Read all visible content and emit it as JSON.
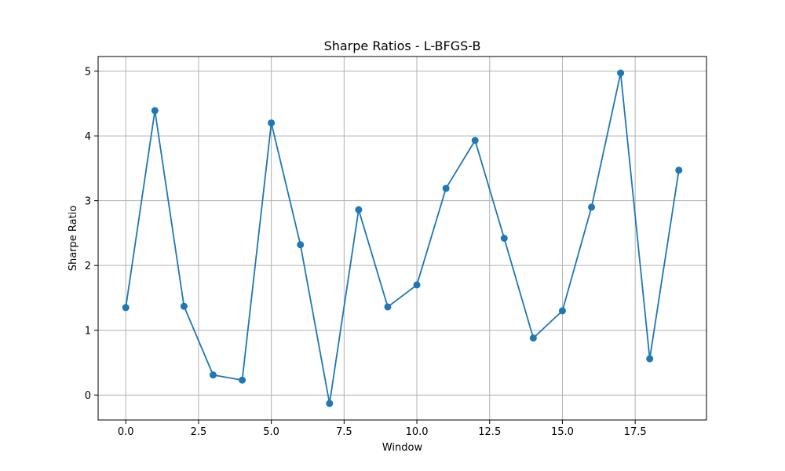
{
  "chart_data": {
    "type": "line",
    "title": "Sharpe Ratios - L-BFGS-B",
    "xlabel": "Window",
    "ylabel": "Sharpe Ratio",
    "x": [
      0,
      1,
      2,
      3,
      4,
      5,
      6,
      7,
      8,
      9,
      10,
      11,
      12,
      13,
      14,
      15,
      16,
      17,
      18,
      19
    ],
    "series": [
      {
        "values": [
          1.35,
          4.39,
          1.37,
          0.31,
          0.23,
          4.2,
          2.32,
          -0.13,
          2.86,
          1.36,
          1.7,
          3.19,
          3.93,
          2.42,
          0.88,
          1.3,
          2.9,
          4.97,
          0.56,
          3.47
        ]
      }
    ],
    "xlim": [
      -0.95,
      19.95
    ],
    "ylim": [
      -0.385,
      5.225
    ],
    "xticks": [
      0,
      2.5,
      5,
      7.5,
      10,
      12.5,
      15,
      17.5
    ],
    "xtick_labels": [
      "0.0",
      "2.5",
      "5.0",
      "7.5",
      "10.0",
      "12.5",
      "15.0",
      "17.5"
    ],
    "yticks": [
      0,
      1,
      2,
      3,
      4,
      5
    ],
    "ytick_labels": [
      "0",
      "1",
      "2",
      "3",
      "4",
      "5"
    ],
    "grid": true,
    "marker": "circle",
    "line_color": "#1f77b4",
    "grid_color": "#b0b0b0"
  }
}
